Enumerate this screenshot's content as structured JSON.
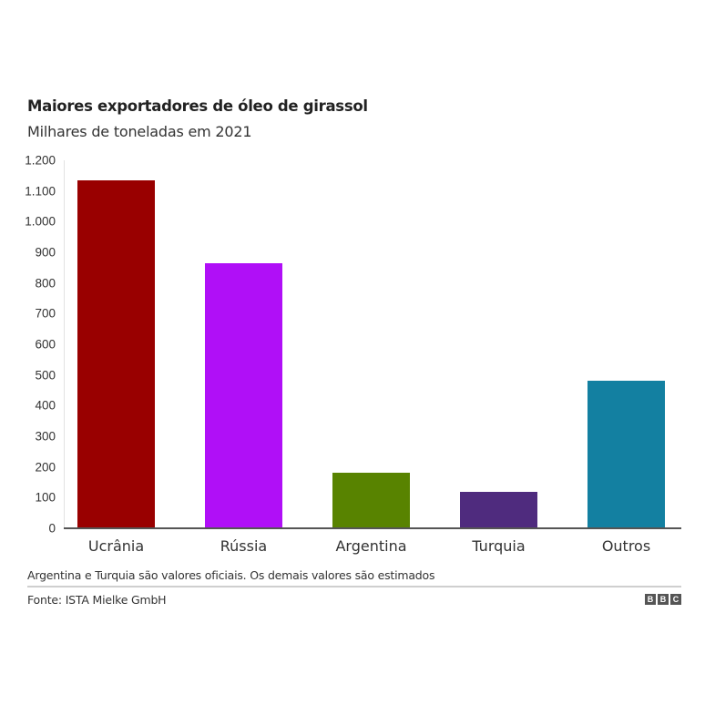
{
  "header": {
    "title": "Maiores exportadores de óleo de girassol",
    "subtitle": "Milhares de toneladas em 2021"
  },
  "footer": {
    "note": "Argentina e Turquia são valores oficiais. Os demais valores são estimados",
    "source": "Fonte: ISTA Mielke GmbH",
    "logo": [
      "B",
      "B",
      "C"
    ]
  },
  "yticks": [
    "0",
    "100",
    "200",
    "300",
    "400",
    "500",
    "600",
    "700",
    "800",
    "900",
    "1.000",
    "1.100",
    "1.200"
  ],
  "chart_data": {
    "type": "bar",
    "title": "Maiores exportadores de óleo de girassol",
    "subtitle": "Milhares de toneladas em 2021",
    "xlabel": "",
    "ylabel": "Milhares de toneladas",
    "ylim": [
      0,
      1200
    ],
    "yticks": [
      0,
      100,
      200,
      300,
      400,
      500,
      600,
      700,
      800,
      900,
      1000,
      1100,
      1200
    ],
    "grid": false,
    "legend": "none",
    "categories": [
      "Ucrânia",
      "Rússia",
      "Argentina",
      "Turquia",
      "Outros"
    ],
    "values": [
      1135,
      865,
      182,
      120,
      482
    ],
    "colors": [
      "#990000",
      "#b00ff7",
      "#588300",
      "#4f2b7e",
      "#1380a1"
    ],
    "annotations": [
      "Argentina e Turquia são valores oficiais. Os demais valores são estimados"
    ],
    "source": "Fonte: ISTA Mielke GmbH"
  }
}
